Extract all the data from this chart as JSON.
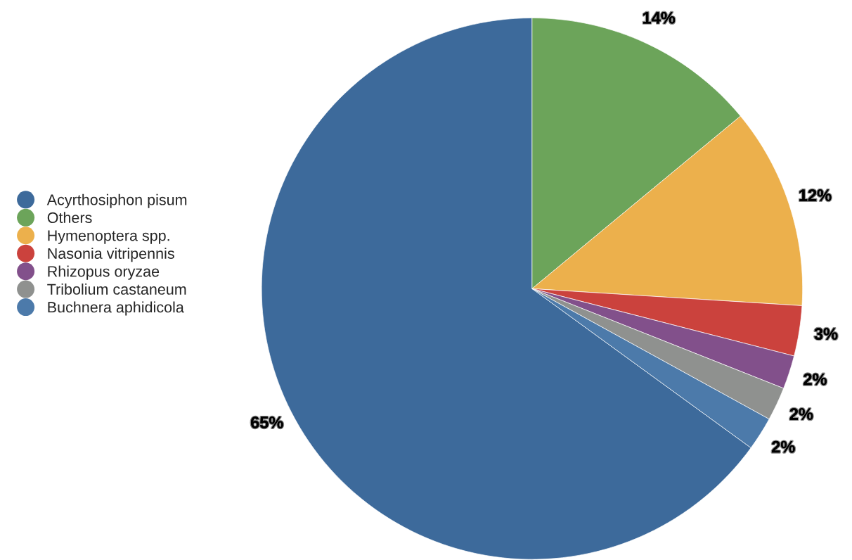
{
  "chart_data": {
    "type": "pie",
    "categories": [
      "Acyrthosiphon pisum",
      "Others",
      "Hymenoptera spp.",
      "Nasonia vitripennis",
      "Rhizopus oryzae",
      "Tribolium castaneum",
      "Buchnera aphidicola"
    ],
    "values": [
      65,
      14,
      12,
      3,
      2,
      2,
      2
    ],
    "colors": [
      "#3d6a9b",
      "#6ca45a",
      "#ecb04c",
      "#cb423d",
      "#82508b",
      "#8f918f",
      "#4c7aaa"
    ],
    "value_labels": [
      "65%",
      "14%",
      "12%",
      "3%",
      "2%",
      "2%",
      "2%"
    ],
    "legend": "left"
  }
}
